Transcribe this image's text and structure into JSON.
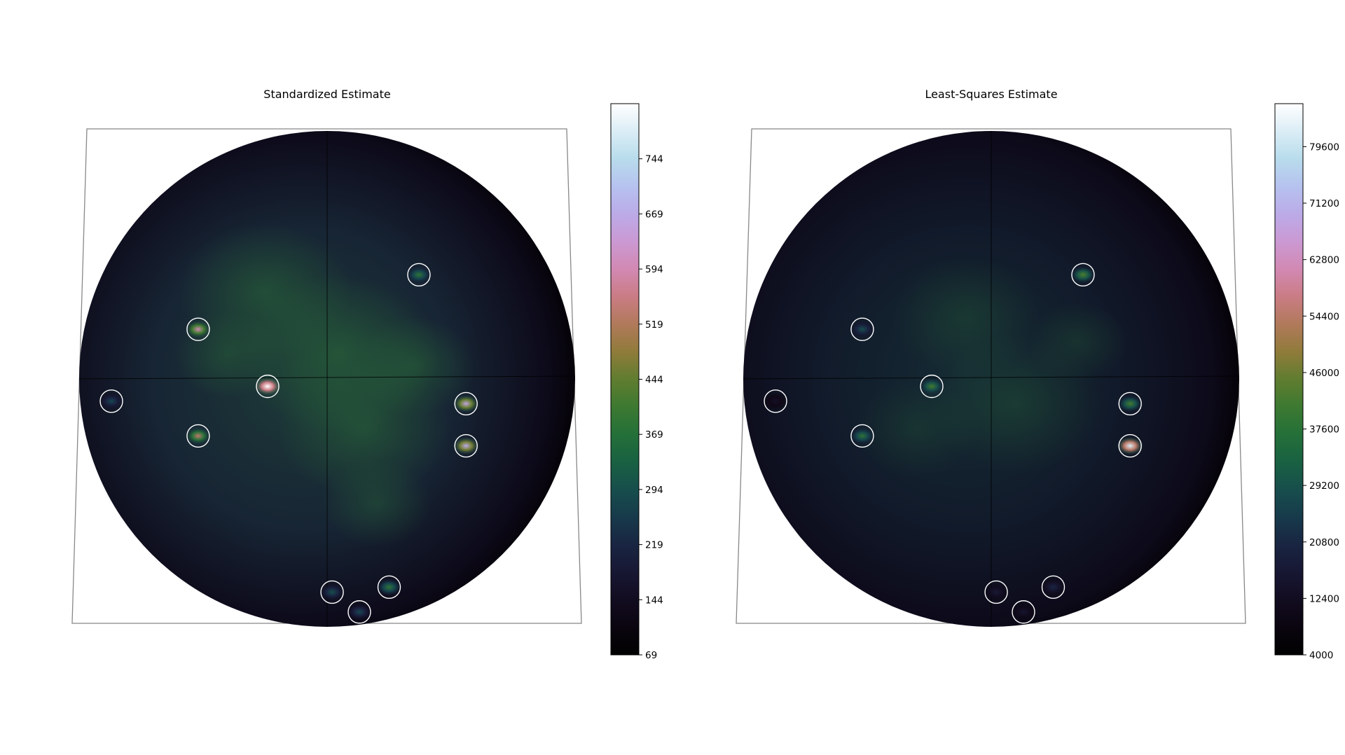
{
  "chart_data": [
    {
      "type": "heatmap",
      "title": "Standardized Estimate",
      "colormap": "cubehelix",
      "colorbar": {
        "range": [
          69,
          819
        ],
        "ticks": [
          69,
          144,
          219,
          294,
          369,
          444,
          519,
          594,
          669,
          744
        ]
      },
      "markers": [
        {
          "az": 0.37,
          "alt": 0.42,
          "intensity": 0.42
        },
        {
          "az": -0.52,
          "alt": 0.2,
          "intensity": 0.7
        },
        {
          "az": -0.87,
          "alt": -0.09,
          "intensity": 0.28
        },
        {
          "az": -0.24,
          "alt": -0.03,
          "intensity": 1.0
        },
        {
          "az": -0.52,
          "alt": -0.23,
          "intensity": 0.62
        },
        {
          "az": 0.56,
          "alt": -0.1,
          "intensity": 0.78
        },
        {
          "az": 0.56,
          "alt": -0.27,
          "intensity": 0.8
        },
        {
          "az": 0.02,
          "alt": -0.86,
          "intensity": 0.3
        },
        {
          "az": 0.13,
          "alt": -0.94,
          "intensity": 0.28
        },
        {
          "az": 0.25,
          "alt": -0.84,
          "intensity": 0.42
        }
      ]
    },
    {
      "type": "heatmap",
      "title": "Least-Squares Estimate",
      "colormap": "cubehelix",
      "colorbar": {
        "range": [
          4000,
          86000
        ],
        "ticks": [
          4000,
          12400,
          20800,
          29200,
          37600,
          46000,
          54400,
          62800,
          71200,
          79600
        ]
      },
      "markers": [
        {
          "az": 0.37,
          "alt": 0.42,
          "intensity": 0.48
        },
        {
          "az": -0.52,
          "alt": 0.2,
          "intensity": 0.3
        },
        {
          "az": -0.87,
          "alt": -0.09,
          "intensity": 0.12
        },
        {
          "az": -0.24,
          "alt": -0.03,
          "intensity": 0.46
        },
        {
          "az": -0.52,
          "alt": -0.23,
          "intensity": 0.42
        },
        {
          "az": 0.56,
          "alt": -0.1,
          "intensity": 0.46
        },
        {
          "az": 0.56,
          "alt": -0.27,
          "intensity": 0.95
        },
        {
          "az": 0.02,
          "alt": -0.86,
          "intensity": 0.16
        },
        {
          "az": 0.13,
          "alt": -0.94,
          "intensity": 0.14
        },
        {
          "az": 0.25,
          "alt": -0.84,
          "intensity": 0.2
        }
      ]
    }
  ]
}
